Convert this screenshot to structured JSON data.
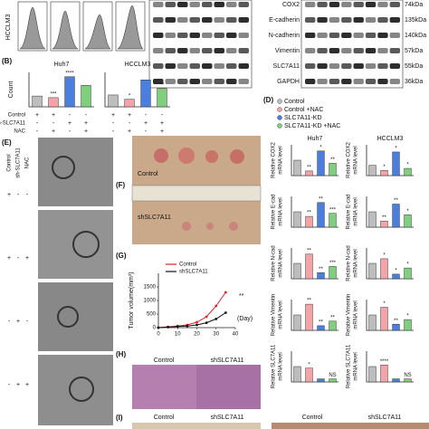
{
  "blot": {
    "proteins": [
      "COX2",
      "E-cadherin",
      "N-cadherin",
      "Vimentin",
      "SLC7A11",
      "GAPDH"
    ],
    "sizes": [
      "74kDa",
      "135kDa",
      "140kDa",
      "57kDa",
      "55kDa",
      "36kDa"
    ]
  },
  "flow": {
    "cell_line": "HCCLM3"
  },
  "panel_labels": [
    "(B)",
    "(D)",
    "(E)",
    "(F)",
    "(G)",
    "(H)",
    "(I)"
  ],
  "palette": [
    "#bdbdbd",
    "#f4a3a8",
    "#4a7fe0",
    "#7fcf7f"
  ],
  "panel_b": {
    "conditions": [
      {
        "name": "Control",
        "marks": [
          "+",
          "+",
          "-",
          "-",
          "+",
          "+",
          "-",
          "-"
        ]
      },
      {
        "name": "sh-SLC7A11",
        "marks": [
          "-",
          "-",
          "+",
          "+",
          "-",
          "-",
          "+",
          "+"
        ]
      },
      {
        "name": "NAC",
        "marks": [
          "-",
          "+",
          "-",
          "+",
          "-",
          "+",
          "-",
          "+"
        ]
      }
    ]
  },
  "panel_d": {
    "legend": [
      "Control",
      "Control +NAC",
      "SLC7A11-KD",
      "SLC7A11-KD +NAC"
    ]
  },
  "panel_e": {
    "conditions": [
      {
        "name": "Control",
        "marks": [
          "+",
          "+",
          "-",
          "-"
        ]
      },
      {
        "name": "sh-SLC7A11",
        "marks": [
          "-",
          "-",
          "+",
          "+"
        ]
      },
      {
        "name": "NAC",
        "marks": [
          "-",
          "+",
          "-",
          "+"
        ]
      }
    ]
  },
  "panel_f": {
    "labels": [
      "Control",
      "shSLC7A11"
    ]
  },
  "panel_h": {
    "labels": [
      "Control",
      "shSLC7A11"
    ]
  },
  "panel_i": {
    "labels": [
      "Control",
      "shSLC7A11",
      "Control",
      "shSLC7A11"
    ]
  },
  "chart_data": [
    {
      "type": "bar",
      "title": "Huh7",
      "y_label": "Count",
      "values": [
        1.0,
        0.85,
        2.8,
        2.0
      ],
      "bar_labels": [
        null,
        "***",
        "****",
        null
      ],
      "ylim": [
        0,
        3.2
      ]
    },
    {
      "type": "bar",
      "title": "HCCLM3",
      "values": [
        1.1,
        0.7,
        2.5,
        1.7
      ],
      "bar_labels": [
        null,
        "*",
        null,
        "**"
      ],
      "ylim": [
        0,
        3.2
      ]
    },
    {
      "type": "bar",
      "title": "Huh7",
      "y_label": [
        "Relative COX2",
        "mRNA level"
      ],
      "values": [
        1.0,
        0.3,
        1.6,
        0.8
      ],
      "bar_labels": [
        null,
        "**",
        "*",
        "**"
      ],
      "ylim": [
        0,
        2
      ]
    },
    {
      "type": "bar",
      "title": "HCCLM3",
      "y_label": [
        "Relative COX2",
        "mRNA level"
      ],
      "values": [
        1.0,
        0.5,
        2.3,
        0.7
      ],
      "bar_labels": [
        null,
        "*",
        "*",
        "*"
      ],
      "ylim": [
        0,
        3
      ]
    },
    {
      "type": "bar",
      "y_label": [
        "Relative E-cad",
        "mRNA level"
      ],
      "values": [
        1.0,
        0.7,
        1.6,
        0.9
      ],
      "bar_labels": [
        null,
        "**",
        "**",
        "***"
      ],
      "ylim": [
        0,
        2
      ]
    },
    {
      "type": "bar",
      "y_label": [
        "Relative E-cad",
        "mRNA level"
      ],
      "values": [
        1.0,
        0.4,
        1.5,
        0.8
      ],
      "bar_labels": [
        null,
        "**",
        "**",
        "*"
      ],
      "ylim": [
        0,
        2
      ]
    },
    {
      "type": "bar",
      "y_label": [
        "Relative N-cad",
        "mRNA level"
      ],
      "values": [
        1.0,
        1.6,
        0.4,
        0.8
      ],
      "bar_labels": [
        null,
        "**",
        "**",
        "***"
      ],
      "ylim": [
        0,
        2
      ]
    },
    {
      "type": "bar",
      "y_label": [
        "Relative N-cad",
        "mRNA level"
      ],
      "values": [
        1.0,
        1.3,
        0.3,
        0.7
      ],
      "bar_labels": [
        null,
        "*",
        "*",
        "*"
      ],
      "ylim": [
        0,
        2
      ]
    },
    {
      "type": "bar",
      "y_label": [
        "Relative Vimentin",
        "mRNA level"
      ],
      "values": [
        1.0,
        1.7,
        0.3,
        0.6
      ],
      "bar_labels": [
        null,
        "**",
        "**",
        "**"
      ],
      "ylim": [
        0,
        2
      ]
    },
    {
      "type": "bar",
      "y_label": [
        "Relative Vimentin",
        "mRNA level"
      ],
      "values": [
        1.0,
        1.5,
        0.4,
        0.7
      ],
      "bar_labels": [
        null,
        "*",
        "**",
        "*"
      ],
      "ylim": [
        0,
        2
      ]
    },
    {
      "type": "bar",
      "y_label": [
        "Relative SLC7A11",
        "mRNA level"
      ],
      "values": [
        1.0,
        0.9,
        0.2,
        0.2
      ],
      "bar_labels": [
        null,
        "*",
        null,
        "NS"
      ],
      "ylim": [
        0,
        2
      ]
    },
    {
      "type": "bar",
      "y_label": [
        "Relative SLC7A11",
        "mRNA level"
      ],
      "values": [
        1.0,
        1.1,
        0.2,
        0.2
      ],
      "bar_labels": [
        null,
        "****",
        null,
        "NS"
      ],
      "ylim": [
        0,
        2
      ]
    },
    {
      "type": "line",
      "x_label": "(Day)",
      "y_label": "Tumor volume(mm³)",
      "annotation": "**",
      "x": [
        0,
        5,
        10,
        15,
        20,
        25,
        30,
        35
      ],
      "series": [
        {
          "name": "Control",
          "color": "#e0202a",
          "values": [
            0,
            30,
            60,
            100,
            200,
            400,
            800,
            1300
          ]
        },
        {
          "name": "shSLC7A11",
          "color": "#111111",
          "values": [
            0,
            20,
            40,
            60,
            100,
            180,
            320,
            550
          ]
        }
      ],
      "xlim": [
        0,
        40
      ],
      "ylim": [
        0,
        2000
      ],
      "xticks": [
        0,
        10,
        20,
        30,
        40
      ],
      "yticks": [
        0,
        500,
        1000,
        1500
      ]
    }
  ]
}
